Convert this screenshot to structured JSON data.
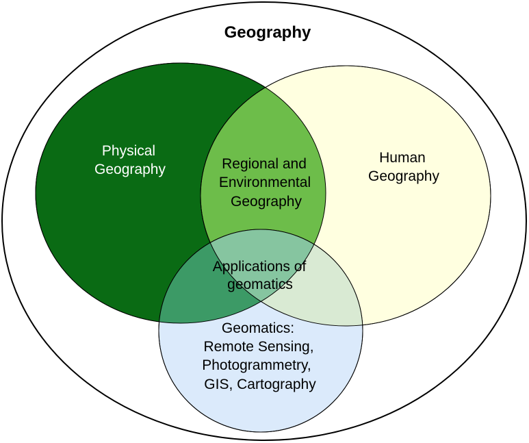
{
  "diagram": {
    "title": "Geography",
    "regions": {
      "physical": {
        "lines": [
          "Physical",
          "Geography"
        ],
        "color": "#0a6b14"
      },
      "human": {
        "lines": [
          "Human",
          "Geography"
        ],
        "color": "#ffffe0"
      },
      "geomatics": {
        "lines": [
          "Geomatics:",
          "Remote Sensing,",
          "Photogrammetry,",
          "GIS, Cartography"
        ],
        "color": "#dbeafb"
      },
      "regional": {
        "lines": [
          "Regional and",
          "Environmental",
          "Geography"
        ],
        "color": "#6dbd4a"
      },
      "applications": {
        "lines": [
          "Applications of",
          "geomatics"
        ],
        "color": "#86c5a0"
      }
    },
    "outline_color": "#000000"
  }
}
